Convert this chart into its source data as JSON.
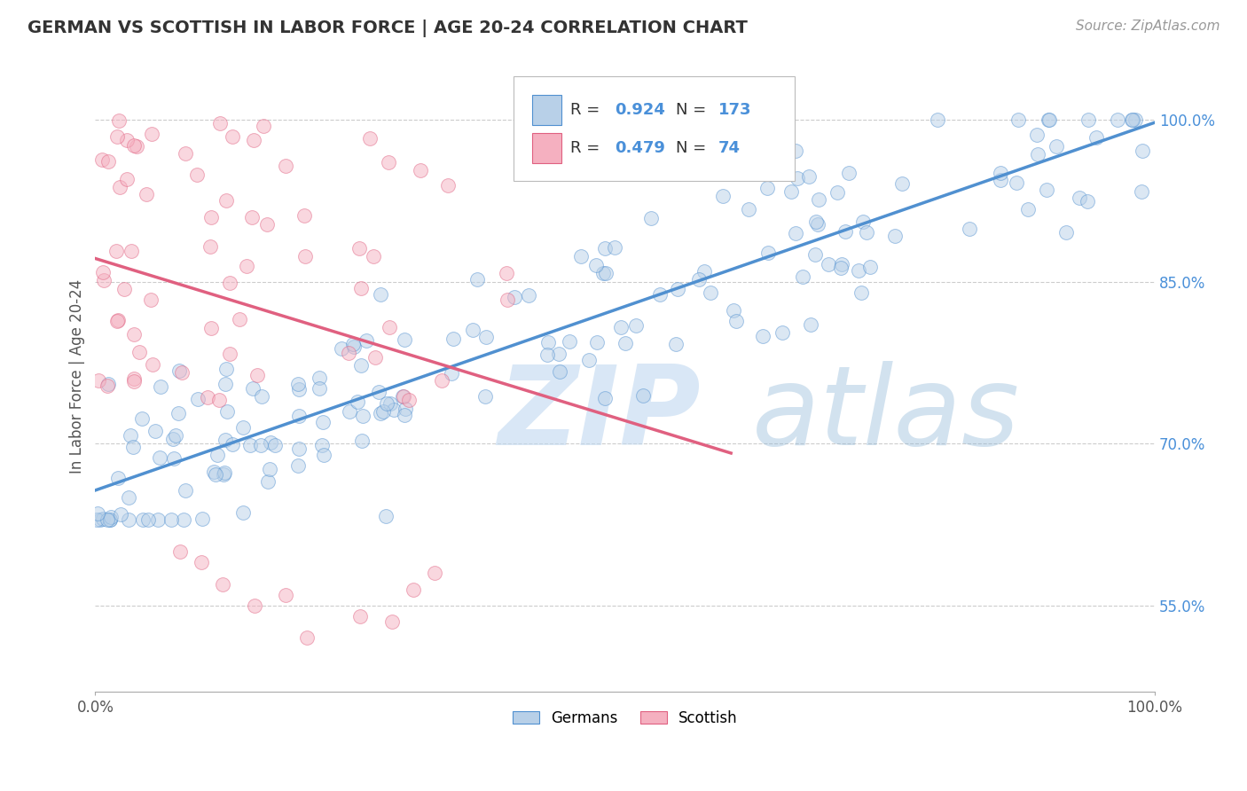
{
  "title": "GERMAN VS SCOTTISH IN LABOR FORCE | AGE 20-24 CORRELATION CHART",
  "source_text": "Source: ZipAtlas.com",
  "ylabel": "In Labor Force | Age 20-24",
  "xlim": [
    0,
    1
  ],
  "ylim": [
    0.47,
    1.055
  ],
  "yticks": [
    0.55,
    0.7,
    0.85,
    1.0
  ],
  "ytick_labels": [
    "55.0%",
    "70.0%",
    "85.0%",
    "100.0%"
  ],
  "xticks": [
    0.0,
    1.0
  ],
  "xtick_labels": [
    "0.0%",
    "100.0%"
  ],
  "german_R": 0.924,
  "german_N": 173,
  "scottish_R": 0.479,
  "scottish_N": 74,
  "german_color": "#b8d0e8",
  "scottish_color": "#f5b0c0",
  "german_line_color": "#5090d0",
  "scottish_line_color": "#e06080",
  "watermark_zip_color": "#c0d8f0",
  "watermark_atlas_color": "#90b8d8",
  "background_color": "#ffffff",
  "title_color": "#333333",
  "legend_color": "#4a90d9",
  "dot_size": 130,
  "dot_alpha": 0.5,
  "seed": 99
}
